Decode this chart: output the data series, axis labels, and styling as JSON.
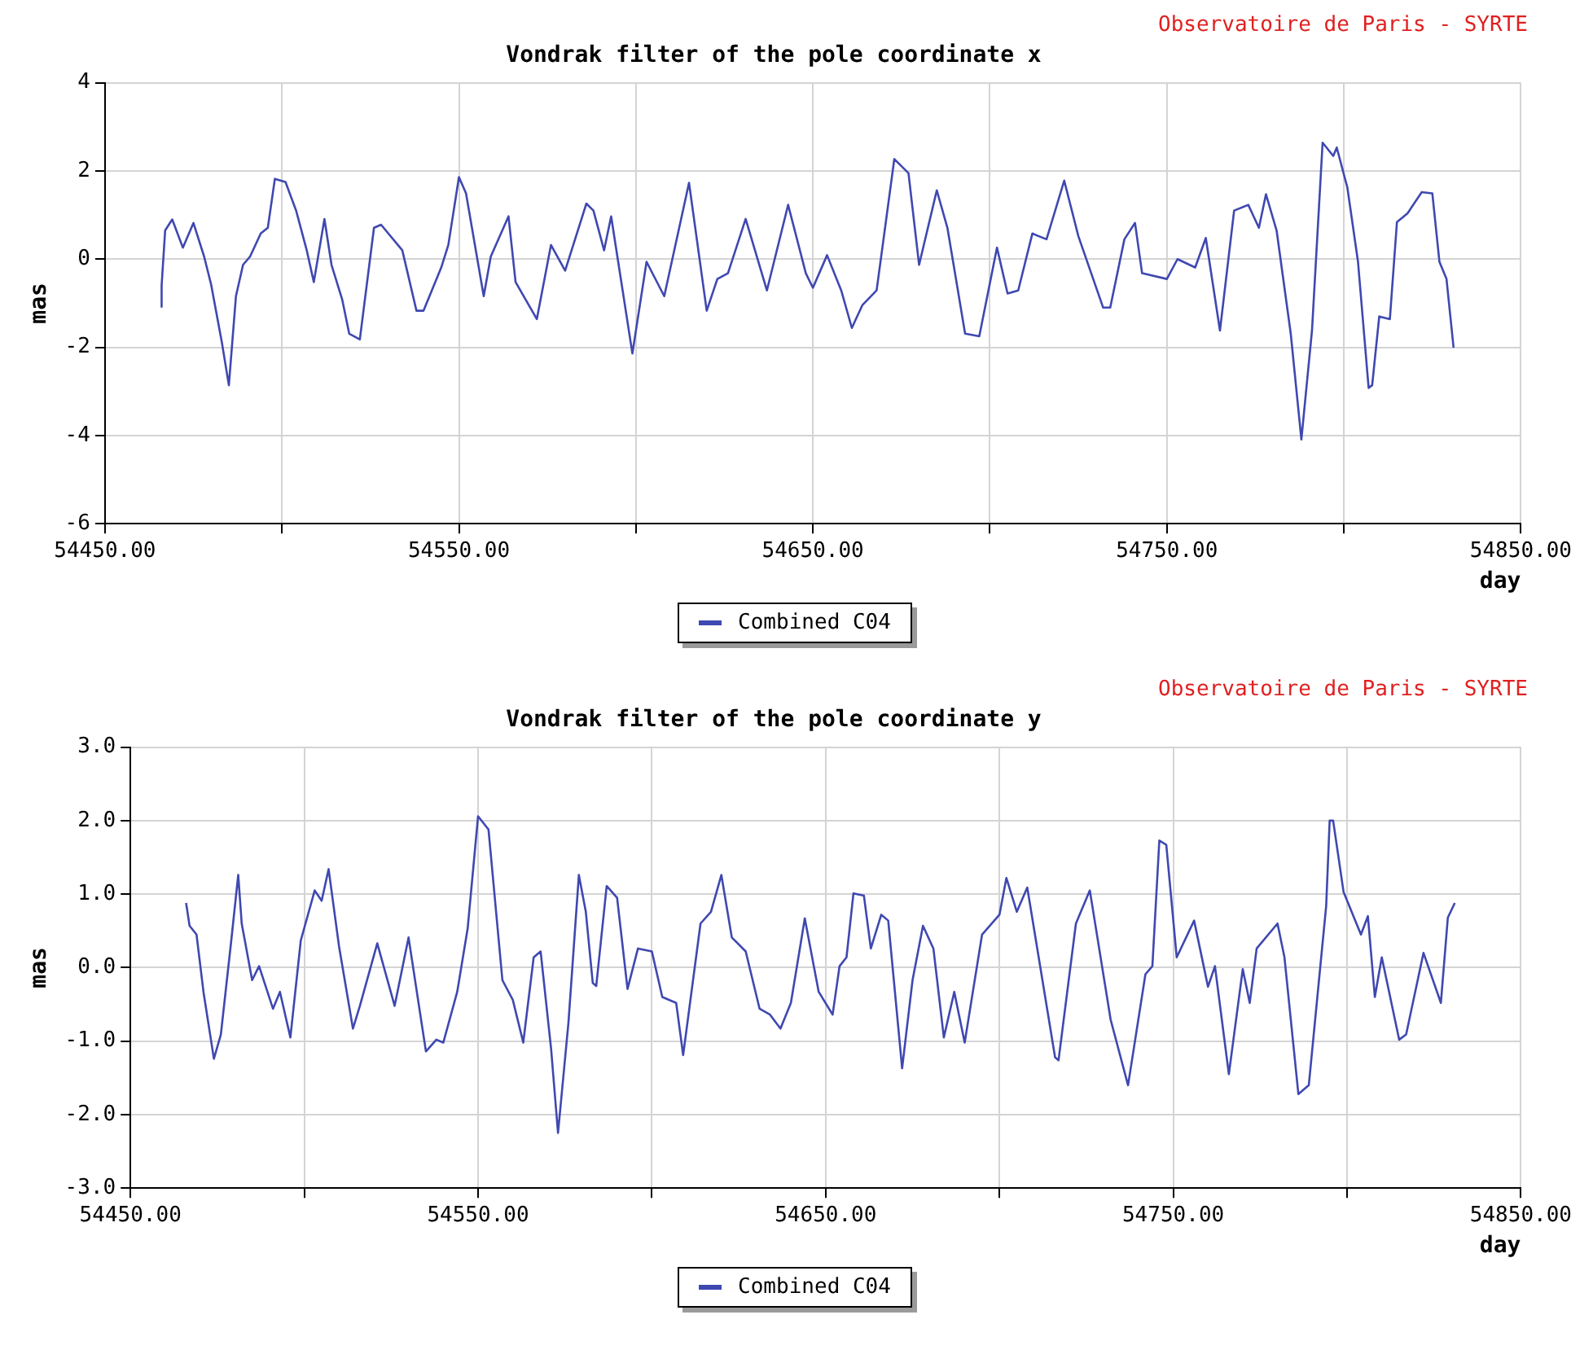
{
  "chart_data": [
    {
      "type": "line",
      "title": "Vondrak filter of the pole coordinate x",
      "xlabel": "day",
      "ylabel": "mas",
      "annotations": [
        "Observatoire de Paris - SYRTE"
      ],
      "legend": "bottom",
      "grid": true,
      "xlim": [
        54450,
        54850
      ],
      "xticks": [
        {
          "value": 54450,
          "label": "54450.00"
        },
        {
          "value": 54500,
          "label": null
        },
        {
          "value": 54550,
          "label": "54550.00"
        },
        {
          "value": 54600,
          "label": null
        },
        {
          "value": 54650,
          "label": "54650.00"
        },
        {
          "value": 54700,
          "label": null
        },
        {
          "value": 54750,
          "label": "54750.00"
        },
        {
          "value": 54800,
          "label": null
        },
        {
          "value": 54850,
          "label": "54850.00"
        }
      ],
      "ylim": [
        -6,
        4
      ],
      "yticks": [
        -6,
        -4,
        -2,
        0,
        2,
        4
      ],
      "series": [
        {
          "name": "Combined C04",
          "color": "#3f48b0",
          "x": [
            54466,
            54466,
            54467,
            54469,
            54472,
            54475,
            54478,
            54480,
            54483,
            54485,
            54487,
            54489,
            54491,
            54494,
            54496,
            54498,
            54501,
            54504,
            54507,
            54509,
            54512,
            54514,
            54517,
            54519,
            54522,
            54526,
            54528,
            54534,
            54538,
            54540,
            54545,
            54547,
            54550,
            54552,
            54557,
            54559,
            54564,
            54566,
            54572,
            54576,
            54580,
            54586,
            54588,
            54591,
            54593,
            54599,
            54603,
            54608,
            54615,
            54620,
            54623,
            54626,
            54631,
            54637,
            54643,
            54648,
            54650,
            54654,
            54658,
            54661,
            54664,
            54668,
            54673,
            54677,
            54680,
            54685,
            54688,
            54693,
            54697,
            54702,
            54705,
            54708,
            54712,
            54716,
            54721,
            54725,
            54732,
            54734,
            54738,
            54741,
            54743,
            54750,
            54753,
            54758,
            54761,
            54765,
            54769,
            54773,
            54776,
            54778,
            54781,
            54785,
            54788,
            54791,
            54794,
            54797,
            54798,
            54801,
            54804,
            54807,
            54808,
            54810,
            54813,
            54815,
            54818,
            54822,
            54825,
            54827,
            54829,
            54831
          ],
          "values": [
            -1.1,
            -0.6,
            0.65,
            0.9,
            0.26,
            0.82,
            0.06,
            -0.58,
            -1.88,
            -2.86,
            -0.84,
            -0.13,
            0.06,
            0.58,
            0.71,
            1.82,
            1.75,
            1.1,
            0.2,
            -0.52,
            0.91,
            -0.13,
            -0.91,
            -1.69,
            -1.82,
            0.71,
            0.78,
            0.2,
            -1.17,
            -1.17,
            -0.19,
            0.32,
            1.86,
            1.49,
            -0.84,
            0.06,
            0.97,
            -0.52,
            -1.36,
            0.32,
            -0.26,
            1.26,
            1.1,
            0.2,
            0.97,
            -2.14,
            -0.06,
            -0.84,
            1.73,
            -1.17,
            -0.45,
            -0.32,
            0.91,
            -0.71,
            1.23,
            -0.32,
            -0.65,
            0.09,
            -0.71,
            -1.56,
            -1.04,
            -0.71,
            2.27,
            1.95,
            -0.13,
            1.56,
            0.71,
            -1.69,
            -1.75,
            0.26,
            -0.78,
            -0.71,
            0.58,
            0.45,
            1.78,
            0.52,
            -1.1,
            -1.1,
            0.45,
            0.82,
            -0.32,
            -0.45,
            0.0,
            -0.19,
            0.48,
            -1.62,
            1.1,
            1.23,
            0.71,
            1.47,
            0.65,
            -1.69,
            -4.09,
            -1.62,
            2.64,
            2.34,
            2.53,
            1.62,
            -0.06,
            -2.92,
            -2.86,
            -1.3,
            -1.36,
            0.84,
            1.04,
            1.52,
            1.49,
            -0.06,
            -0.45,
            -2.01
          ]
        }
      ]
    },
    {
      "type": "line",
      "title": "Vondrak filter of the pole coordinate y",
      "xlabel": "day",
      "ylabel": "mas",
      "annotations": [
        "Observatoire de Paris - SYRTE"
      ],
      "legend": "bottom",
      "grid": true,
      "xlim": [
        54450,
        54850
      ],
      "xticks": [
        {
          "value": 54450,
          "label": "54450.00"
        },
        {
          "value": 54500,
          "label": null
        },
        {
          "value": 54550,
          "label": "54550.00"
        },
        {
          "value": 54600,
          "label": null
        },
        {
          "value": 54650,
          "label": "54650.00"
        },
        {
          "value": 54700,
          "label": null
        },
        {
          "value": 54750,
          "label": "54750.00"
        },
        {
          "value": 54800,
          "label": null
        },
        {
          "value": 54850,
          "label": "54850.00"
        }
      ],
      "ylim": [
        -3,
        3
      ],
      "yticks": [
        {
          "value": -3,
          "label": "-3.0"
        },
        {
          "value": -2,
          "label": "-2.0"
        },
        {
          "value": -1,
          "label": "-1.0"
        },
        {
          "value": 0,
          "label": "0.0"
        },
        {
          "value": 1,
          "label": "1.0"
        },
        {
          "value": 2,
          "label": "2.0"
        },
        {
          "value": 3,
          "label": "3.0"
        }
      ],
      "series": [
        {
          "name": "Combined C04",
          "color": "#3f48b0",
          "x": [
            54466,
            54467,
            54469,
            54471,
            54474,
            54476,
            54479,
            54481,
            54482,
            54485,
            54487,
            54491,
            54493,
            54496,
            54499,
            54503,
            54505,
            54507,
            54510,
            54514,
            54516,
            54521,
            54526,
            54530,
            54535,
            54538,
            54540,
            54544,
            54547,
            54550,
            54553,
            54557,
            54560,
            54563,
            54566,
            54568,
            54571,
            54573,
            54576,
            54579,
            54581,
            54583,
            54584,
            54587,
            54590,
            54593,
            54596,
            54600,
            54603,
            54607,
            54609,
            54614,
            54617,
            54620,
            54623,
            54627,
            54631,
            54634,
            54637,
            54640,
            54644,
            54648,
            54652,
            54654,
            54656,
            54658,
            54661,
            54663,
            54666,
            54668,
            54672,
            54675,
            54678,
            54681,
            54684,
            54687,
            54690,
            54695,
            54700,
            54702,
            54705,
            54708,
            54716,
            54717,
            54722,
            54726,
            54732,
            54737,
            54742,
            54744,
            54746,
            54748,
            54751,
            54756,
            54760,
            54762,
            54766,
            54770,
            54772,
            54774,
            54780,
            54782,
            54786,
            54789,
            54794,
            54795,
            54796,
            54799,
            54804,
            54806,
            54808,
            54810,
            54815,
            54817,
            54822,
            54827,
            54829,
            54831
          ],
          "values": [
            0.88,
            0.57,
            0.45,
            -0.33,
            -1.24,
            -0.91,
            0.37,
            1.26,
            0.6,
            -0.17,
            0.02,
            -0.56,
            -0.33,
            -0.95,
            0.37,
            1.05,
            0.91,
            1.34,
            0.29,
            -0.83,
            -0.52,
            0.33,
            -0.52,
            0.41,
            -1.14,
            -0.98,
            -1.02,
            -0.33,
            0.53,
            2.06,
            1.88,
            -0.17,
            -0.44,
            -1.02,
            0.14,
            0.22,
            -1.1,
            -2.25,
            -0.75,
            1.26,
            0.76,
            -0.21,
            -0.25,
            1.11,
            0.95,
            -0.29,
            0.26,
            0.22,
            -0.4,
            -0.48,
            -1.19,
            0.6,
            0.76,
            1.26,
            0.41,
            0.22,
            -0.56,
            -0.64,
            -0.83,
            -0.48,
            0.67,
            -0.33,
            -0.64,
            0.02,
            0.14,
            1.01,
            0.98,
            0.26,
            0.72,
            0.64,
            -1.37,
            -0.17,
            0.57,
            0.26,
            -0.95,
            -0.33,
            -1.02,
            0.45,
            0.72,
            1.22,
            0.76,
            1.09,
            -1.22,
            -1.26,
            0.6,
            1.05,
            -0.71,
            -1.6,
            -0.09,
            0.02,
            1.73,
            1.67,
            0.14,
            0.64,
            -0.26,
            0.02,
            -1.45,
            -0.02,
            -0.48,
            0.26,
            0.6,
            0.14,
            -1.72,
            -1.6,
            0.84,
            2.0,
            2.0,
            1.03,
            0.45,
            0.7,
            -0.4,
            0.14,
            -0.98,
            -0.91,
            0.2,
            -0.48,
            0.68,
            0.88
          ]
        }
      ]
    }
  ]
}
